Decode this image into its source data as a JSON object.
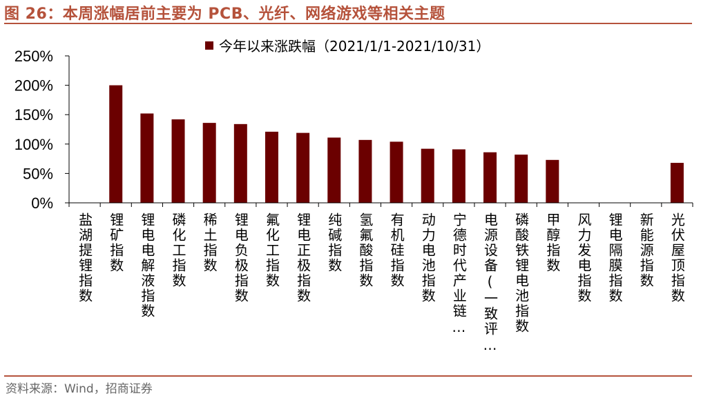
{
  "figure_title": "图 26：本周涨幅居前主要为 PCB、光纤、网络游戏等相关主题",
  "source": "资料来源：Wind，招商证券",
  "colors": {
    "title": "#b5523b",
    "bar": "#6b0000",
    "rule": "#b5523b"
  },
  "chart_data": {
    "type": "bar",
    "title": "",
    "xlabel": "",
    "ylabel": "",
    "ylim": [
      0,
      250
    ],
    "y_ticks": [
      0,
      50,
      100,
      150,
      200,
      250
    ],
    "y_tick_labels": [
      "0%",
      "50%",
      "100%",
      "150%",
      "200%",
      "250%"
    ],
    "grid": false,
    "legend_position": "top-center",
    "categories": [
      "盐湖提锂指数",
      "锂矿指数",
      "锂电电解液指数",
      "磷化工指数",
      "稀土指数",
      "锂电负极指数",
      "氟化工指数",
      "锂电正极指数",
      "纯碱指数",
      "氢氟酸指数",
      "有机硅指数",
      "动力电池指数",
      "宁德时代产业链…",
      "电源设备(一致评…",
      "磷酸铁锂电池指数",
      "甲醇指数",
      "风力发电指数",
      "锂电隔膜指数",
      "新能源指数",
      "光伏屋顶指数"
    ],
    "series": [
      {
        "name": "今年以来涨跌幅（2021/1/1-2021/10/31）",
        "values": [
          0,
          200,
          152,
          142,
          136,
          134,
          121,
          119,
          111,
          107,
          104,
          92,
          91,
          86,
          82,
          73,
          0,
          0,
          0,
          68
        ]
      }
    ]
  }
}
